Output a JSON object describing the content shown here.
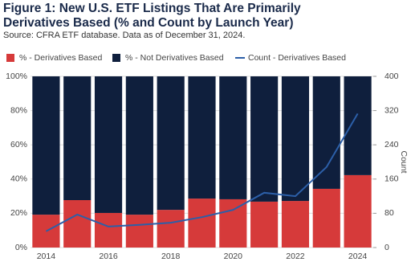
{
  "chart_data": {
    "type": "bar",
    "stacked": true,
    "title": "Figure 1: New U.S. ETF Listings That Are Primarily Derivatives Based (% and Count by Launch Year)",
    "subtitle": "Source: CFRA ETF database. Data as of December 31, 2024.",
    "categories": [
      "2014",
      null,
      "2016",
      null,
      "2018",
      null,
      "2020",
      null,
      "2022",
      null,
      "2024"
    ],
    "series": [
      {
        "name": "% - Derivatives Based",
        "color": "#d63a3a",
        "values": [
          19.2,
          27.7,
          20.2,
          19.2,
          22,
          28.6,
          28.2,
          26.8,
          27.2,
          34.3,
          42.3
        ]
      },
      {
        "name": "% - Not Derivatives Based",
        "color": "#0f1f3d",
        "values": [
          80.8,
          72.3,
          79.8,
          80.8,
          78,
          71.4,
          71.8,
          73.2,
          72.8,
          65.7,
          57.7
        ]
      },
      {
        "name": "Count - Derivatives Based",
        "color": "#2c5fa8",
        "type": "line",
        "axis": "y2",
        "values": [
          38,
          77,
          49,
          53,
          58,
          71,
          88,
          128,
          120,
          188,
          313
        ]
      }
    ],
    "ylim": [
      0,
      100
    ],
    "yticks": [
      {
        "value": 0,
        "label": "0%"
      },
      {
        "value": 20,
        "label": "20%"
      },
      {
        "value": 40,
        "label": "40%"
      },
      {
        "value": 60,
        "label": "60%"
      },
      {
        "value": 80,
        "label": "80%"
      },
      {
        "value": 100,
        "label": "100%"
      }
    ],
    "y2lim": [
      0,
      400
    ],
    "y2ticks": [
      0,
      80,
      160,
      240,
      320,
      400
    ],
    "y2label": "Count",
    "grid": true
  }
}
